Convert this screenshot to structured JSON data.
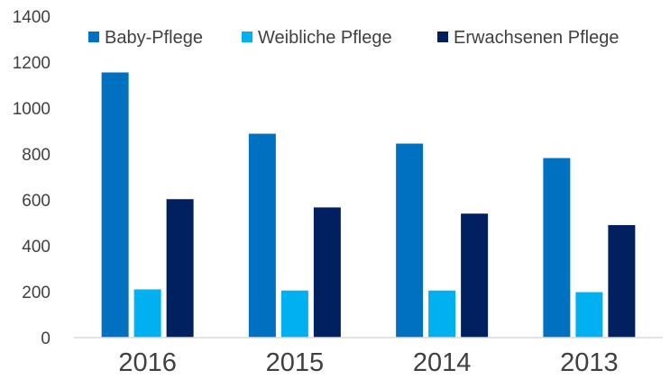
{
  "chart_data": {
    "type": "bar",
    "title": "",
    "xlabel": "",
    "ylabel": "",
    "categories": [
      "2016",
      "2015",
      "2014",
      "2013"
    ],
    "series": [
      {
        "name": "Baby-Pflege",
        "color": "#0070C0",
        "values": [
          1155,
          888,
          845,
          782
        ]
      },
      {
        "name": "Weibliche Pflege",
        "color": "#00B0F0",
        "values": [
          210,
          205,
          205,
          198
        ]
      },
      {
        "name": "Erwachsenen Pflege",
        "color": "#002060",
        "values": [
          603,
          567,
          540,
          490
        ]
      }
    ],
    "ylim": [
      0,
      1400
    ],
    "yticks": [
      0,
      200,
      400,
      600,
      800,
      1000,
      1200,
      1400
    ],
    "grid": false,
    "legend": {
      "position": "top-right"
    }
  }
}
